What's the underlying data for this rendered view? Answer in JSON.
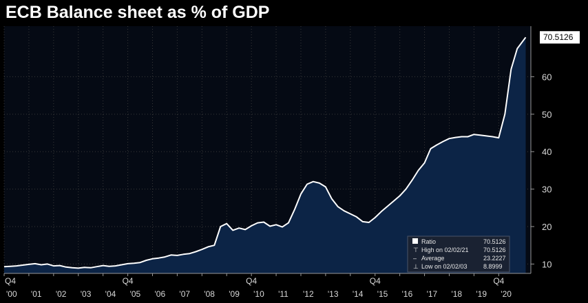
{
  "title": "ECB Balance sheet as % of GDP",
  "colors": {
    "background": "#000000",
    "plot_background": "#050a14",
    "area_fill": "#0c2446",
    "line": "#ffffff",
    "grid": "#3a3a3a",
    "text": "#d8d8d8",
    "legend_bg": "#1a2232"
  },
  "chart_data": {
    "type": "area",
    "title": "ECB Balance sheet as % of GDP",
    "xlabel": "",
    "ylabel": "",
    "xlim": [
      2000.0,
      2021.3
    ],
    "ylim": [
      7.5,
      73.5
    ],
    "grid": true,
    "y_axis_side": "right",
    "y_ticks": [
      10,
      20,
      30,
      40,
      50,
      60
    ],
    "year_labels": [
      "'00",
      "'01",
      "'02",
      "'03",
      "'04",
      "'05",
      "'06",
      "'07",
      "'08",
      "'09",
      "'10",
      "'11",
      "'12",
      "'13",
      "'14",
      "'15",
      "'16",
      "'17",
      "'18",
      "'19",
      "'20"
    ],
    "year_label_start": 2000,
    "quarter_labels": [
      {
        "text": "Q4",
        "x": 2000.0
      },
      {
        "text": "Q4",
        "x": 2004.75
      },
      {
        "text": "Q4",
        "x": 2009.75
      },
      {
        "text": "Q4",
        "x": 2014.75
      },
      {
        "text": "Q4",
        "x": 2019.75
      }
    ],
    "series": [
      {
        "name": "Ratio",
        "points": [
          [
            2000.0,
            9.3
          ],
          [
            2000.25,
            9.4
          ],
          [
            2000.5,
            9.5
          ],
          [
            2000.75,
            9.7
          ],
          [
            2001.0,
            9.9
          ],
          [
            2001.25,
            10.1
          ],
          [
            2001.5,
            9.8
          ],
          [
            2001.75,
            10.0
          ],
          [
            2002.0,
            9.5
          ],
          [
            2002.25,
            9.6
          ],
          [
            2002.5,
            9.2
          ],
          [
            2002.75,
            9.0
          ],
          [
            2003.0,
            8.9
          ],
          [
            2003.25,
            9.1
          ],
          [
            2003.5,
            9.0
          ],
          [
            2003.75,
            9.3
          ],
          [
            2004.0,
            9.6
          ],
          [
            2004.25,
            9.4
          ],
          [
            2004.5,
            9.5
          ],
          [
            2004.75,
            9.8
          ],
          [
            2005.0,
            10.1
          ],
          [
            2005.25,
            10.2
          ],
          [
            2005.5,
            10.4
          ],
          [
            2005.75,
            11.0
          ],
          [
            2006.0,
            11.4
          ],
          [
            2006.25,
            11.6
          ],
          [
            2006.5,
            11.9
          ],
          [
            2006.75,
            12.4
          ],
          [
            2007.0,
            12.3
          ],
          [
            2007.25,
            12.6
          ],
          [
            2007.5,
            12.8
          ],
          [
            2007.75,
            13.3
          ],
          [
            2008.0,
            13.9
          ],
          [
            2008.25,
            14.6
          ],
          [
            2008.5,
            15.0
          ],
          [
            2008.75,
            20.0
          ],
          [
            2009.0,
            20.8
          ],
          [
            2009.25,
            19.0
          ],
          [
            2009.5,
            19.6
          ],
          [
            2009.75,
            19.2
          ],
          [
            2010.0,
            20.2
          ],
          [
            2010.25,
            21.0
          ],
          [
            2010.5,
            21.2
          ],
          [
            2010.75,
            20.1
          ],
          [
            2011.0,
            20.5
          ],
          [
            2011.25,
            19.9
          ],
          [
            2011.5,
            21.0
          ],
          [
            2011.75,
            24.6
          ],
          [
            2012.0,
            28.7
          ],
          [
            2012.25,
            31.3
          ],
          [
            2012.5,
            32.0
          ],
          [
            2012.75,
            31.6
          ],
          [
            2013.0,
            30.6
          ],
          [
            2013.25,
            27.4
          ],
          [
            2013.5,
            25.3
          ],
          [
            2013.75,
            24.2
          ],
          [
            2014.0,
            23.4
          ],
          [
            2014.25,
            22.6
          ],
          [
            2014.5,
            21.3
          ],
          [
            2014.75,
            21.1
          ],
          [
            2015.0,
            22.4
          ],
          [
            2015.25,
            24.0
          ],
          [
            2015.5,
            25.4
          ],
          [
            2015.75,
            26.8
          ],
          [
            2016.0,
            28.2
          ],
          [
            2016.25,
            30.0
          ],
          [
            2016.5,
            32.4
          ],
          [
            2016.75,
            35.0
          ],
          [
            2017.0,
            37.0
          ],
          [
            2017.25,
            40.8
          ],
          [
            2017.5,
            41.8
          ],
          [
            2017.75,
            42.7
          ],
          [
            2018.0,
            43.5
          ],
          [
            2018.25,
            43.8
          ],
          [
            2018.5,
            44.0
          ],
          [
            2018.75,
            44.0
          ],
          [
            2019.0,
            44.6
          ],
          [
            2019.25,
            44.4
          ],
          [
            2019.5,
            44.2
          ],
          [
            2019.75,
            44.0
          ],
          [
            2020.0,
            43.7
          ],
          [
            2020.25,
            50.0
          ],
          [
            2020.5,
            62.0
          ],
          [
            2020.75,
            67.5
          ],
          [
            2021.09,
            70.5126
          ]
        ]
      }
    ],
    "last_value_label": "70.5126",
    "legend": {
      "placement": "bottom-right",
      "entries": [
        {
          "label": "Ratio",
          "value": "70.5126"
        },
        {
          "label": "High on 02/02/21",
          "value": "70.5126"
        },
        {
          "label": "Average",
          "value": "23.2227"
        },
        {
          "label": "Low on 02/02/03",
          "value": "8.8999"
        }
      ]
    }
  }
}
